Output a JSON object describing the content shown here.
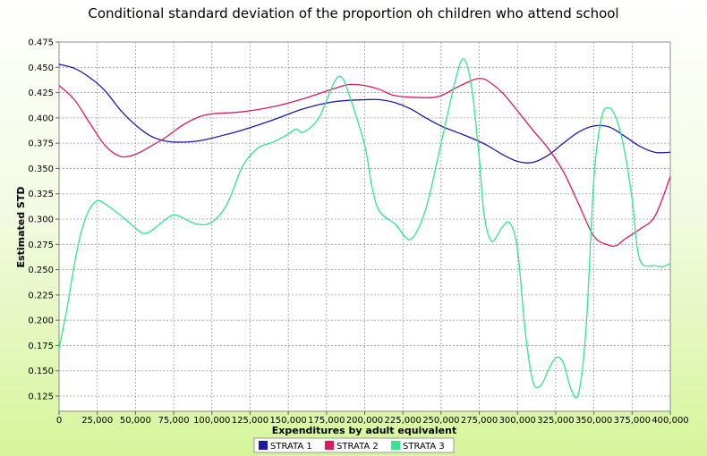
{
  "chart_data": {
    "type": "line",
    "title": "Conditional standard deviation of the proportion oh children who attend school",
    "xlabel": "Expenditures by adult equivalent",
    "ylabel": "Estimated STD",
    "xlim": [
      0,
      400000
    ],
    "ylim": [
      0.11,
      0.475
    ],
    "x_ticks": [
      "0",
      "25,000",
      "50,000",
      "75,000",
      "100,000",
      "125,000",
      "150,000",
      "175,000",
      "200,000",
      "225,000",
      "250,000",
      "275,000",
      "300,000",
      "325,000",
      "350,000",
      "375,000",
      "400,000"
    ],
    "y_ticks": [
      "0.475",
      "0.450",
      "0.425",
      "0.400",
      "0.375",
      "0.350",
      "0.325",
      "0.300",
      "0.275",
      "0.250",
      "0.225",
      "0.200",
      "0.175",
      "0.150",
      "0.125"
    ],
    "grid": true,
    "legend_position": "bottom-center",
    "series": [
      {
        "name": "STRATA 1",
        "color": "#1a1aa6",
        "points": [
          [
            0,
            0.453
          ],
          [
            10000,
            0.449
          ],
          [
            20000,
            0.44
          ],
          [
            30000,
            0.427
          ],
          [
            40000,
            0.408
          ],
          [
            50000,
            0.393
          ],
          [
            60000,
            0.382
          ],
          [
            70000,
            0.377
          ],
          [
            80000,
            0.376
          ],
          [
            90000,
            0.377
          ],
          [
            100000,
            0.38
          ],
          [
            120000,
            0.388
          ],
          [
            140000,
            0.398
          ],
          [
            160000,
            0.409
          ],
          [
            180000,
            0.416
          ],
          [
            200000,
            0.418
          ],
          [
            210000,
            0.418
          ],
          [
            220000,
            0.415
          ],
          [
            230000,
            0.409
          ],
          [
            240000,
            0.4
          ],
          [
            250000,
            0.392
          ],
          [
            260000,
            0.386
          ],
          [
            270000,
            0.38
          ],
          [
            280000,
            0.373
          ],
          [
            290000,
            0.364
          ],
          [
            300000,
            0.357
          ],
          [
            310000,
            0.356
          ],
          [
            320000,
            0.363
          ],
          [
            330000,
            0.375
          ],
          [
            340000,
            0.386
          ],
          [
            350000,
            0.392
          ],
          [
            360000,
            0.391
          ],
          [
            370000,
            0.382
          ],
          [
            380000,
            0.372
          ],
          [
            390000,
            0.366
          ],
          [
            400000,
            0.366
          ]
        ]
      },
      {
        "name": "STRATA 2",
        "color": "#d81b60",
        "points": [
          [
            0,
            0.432
          ],
          [
            10000,
            0.418
          ],
          [
            20000,
            0.395
          ],
          [
            30000,
            0.373
          ],
          [
            40000,
            0.362
          ],
          [
            50000,
            0.364
          ],
          [
            60000,
            0.372
          ],
          [
            70000,
            0.381
          ],
          [
            80000,
            0.392
          ],
          [
            90000,
            0.4
          ],
          [
            100000,
            0.404
          ],
          [
            120000,
            0.406
          ],
          [
            140000,
            0.411
          ],
          [
            160000,
            0.419
          ],
          [
            180000,
            0.429
          ],
          [
            190000,
            0.433
          ],
          [
            200000,
            0.432
          ],
          [
            210000,
            0.428
          ],
          [
            220000,
            0.422
          ],
          [
            240000,
            0.42
          ],
          [
            250000,
            0.422
          ],
          [
            260000,
            0.43
          ],
          [
            270000,
            0.437
          ],
          [
            275000,
            0.439
          ],
          [
            280000,
            0.437
          ],
          [
            290000,
            0.425
          ],
          [
            300000,
            0.407
          ],
          [
            310000,
            0.388
          ],
          [
            320000,
            0.37
          ],
          [
            330000,
            0.347
          ],
          [
            340000,
            0.315
          ],
          [
            350000,
            0.283
          ],
          [
            360000,
            0.274
          ],
          [
            365000,
            0.274
          ],
          [
            370000,
            0.28
          ],
          [
            380000,
            0.29
          ],
          [
            390000,
            0.303
          ],
          [
            400000,
            0.342
          ]
        ]
      },
      {
        "name": "STRATA 3",
        "color": "#2ee88a",
        "points": [
          [
            0,
            0.172
          ],
          [
            5000,
            0.21
          ],
          [
            10000,
            0.255
          ],
          [
            15000,
            0.29
          ],
          [
            20000,
            0.31
          ],
          [
            25000,
            0.318
          ],
          [
            30000,
            0.315
          ],
          [
            40000,
            0.304
          ],
          [
            50000,
            0.291
          ],
          [
            55000,
            0.286
          ],
          [
            60000,
            0.288
          ],
          [
            70000,
            0.3
          ],
          [
            75000,
            0.304
          ],
          [
            80000,
            0.302
          ],
          [
            90000,
            0.295
          ],
          [
            100000,
            0.297
          ],
          [
            110000,
            0.315
          ],
          [
            120000,
            0.352
          ],
          [
            130000,
            0.37
          ],
          [
            140000,
            0.376
          ],
          [
            150000,
            0.384
          ],
          [
            155000,
            0.389
          ],
          [
            160000,
            0.386
          ],
          [
            170000,
            0.4
          ],
          [
            180000,
            0.435
          ],
          [
            185000,
            0.44
          ],
          [
            190000,
            0.422
          ],
          [
            200000,
            0.373
          ],
          [
            205000,
            0.33
          ],
          [
            210000,
            0.307
          ],
          [
            220000,
            0.295
          ],
          [
            230000,
            0.28
          ],
          [
            240000,
            0.31
          ],
          [
            250000,
            0.375
          ],
          [
            260000,
            0.441
          ],
          [
            265000,
            0.458
          ],
          [
            270000,
            0.43
          ],
          [
            275000,
            0.36
          ],
          [
            278000,
            0.306
          ],
          [
            283000,
            0.278
          ],
          [
            290000,
            0.292
          ],
          [
            295000,
            0.296
          ],
          [
            300000,
            0.27
          ],
          [
            305000,
            0.19
          ],
          [
            310000,
            0.14
          ],
          [
            315000,
            0.135
          ],
          [
            320000,
            0.15
          ],
          [
            325000,
            0.163
          ],
          [
            330000,
            0.158
          ],
          [
            335000,
            0.132
          ],
          [
            340000,
            0.128
          ],
          [
            345000,
            0.195
          ],
          [
            350000,
            0.34
          ],
          [
            355000,
            0.4
          ],
          [
            360000,
            0.41
          ],
          [
            365000,
            0.398
          ],
          [
            370000,
            0.368
          ],
          [
            375000,
            0.32
          ],
          [
            380000,
            0.26
          ],
          [
            390000,
            0.254
          ],
          [
            395000,
            0.253
          ],
          [
            400000,
            0.256
          ]
        ]
      }
    ]
  }
}
